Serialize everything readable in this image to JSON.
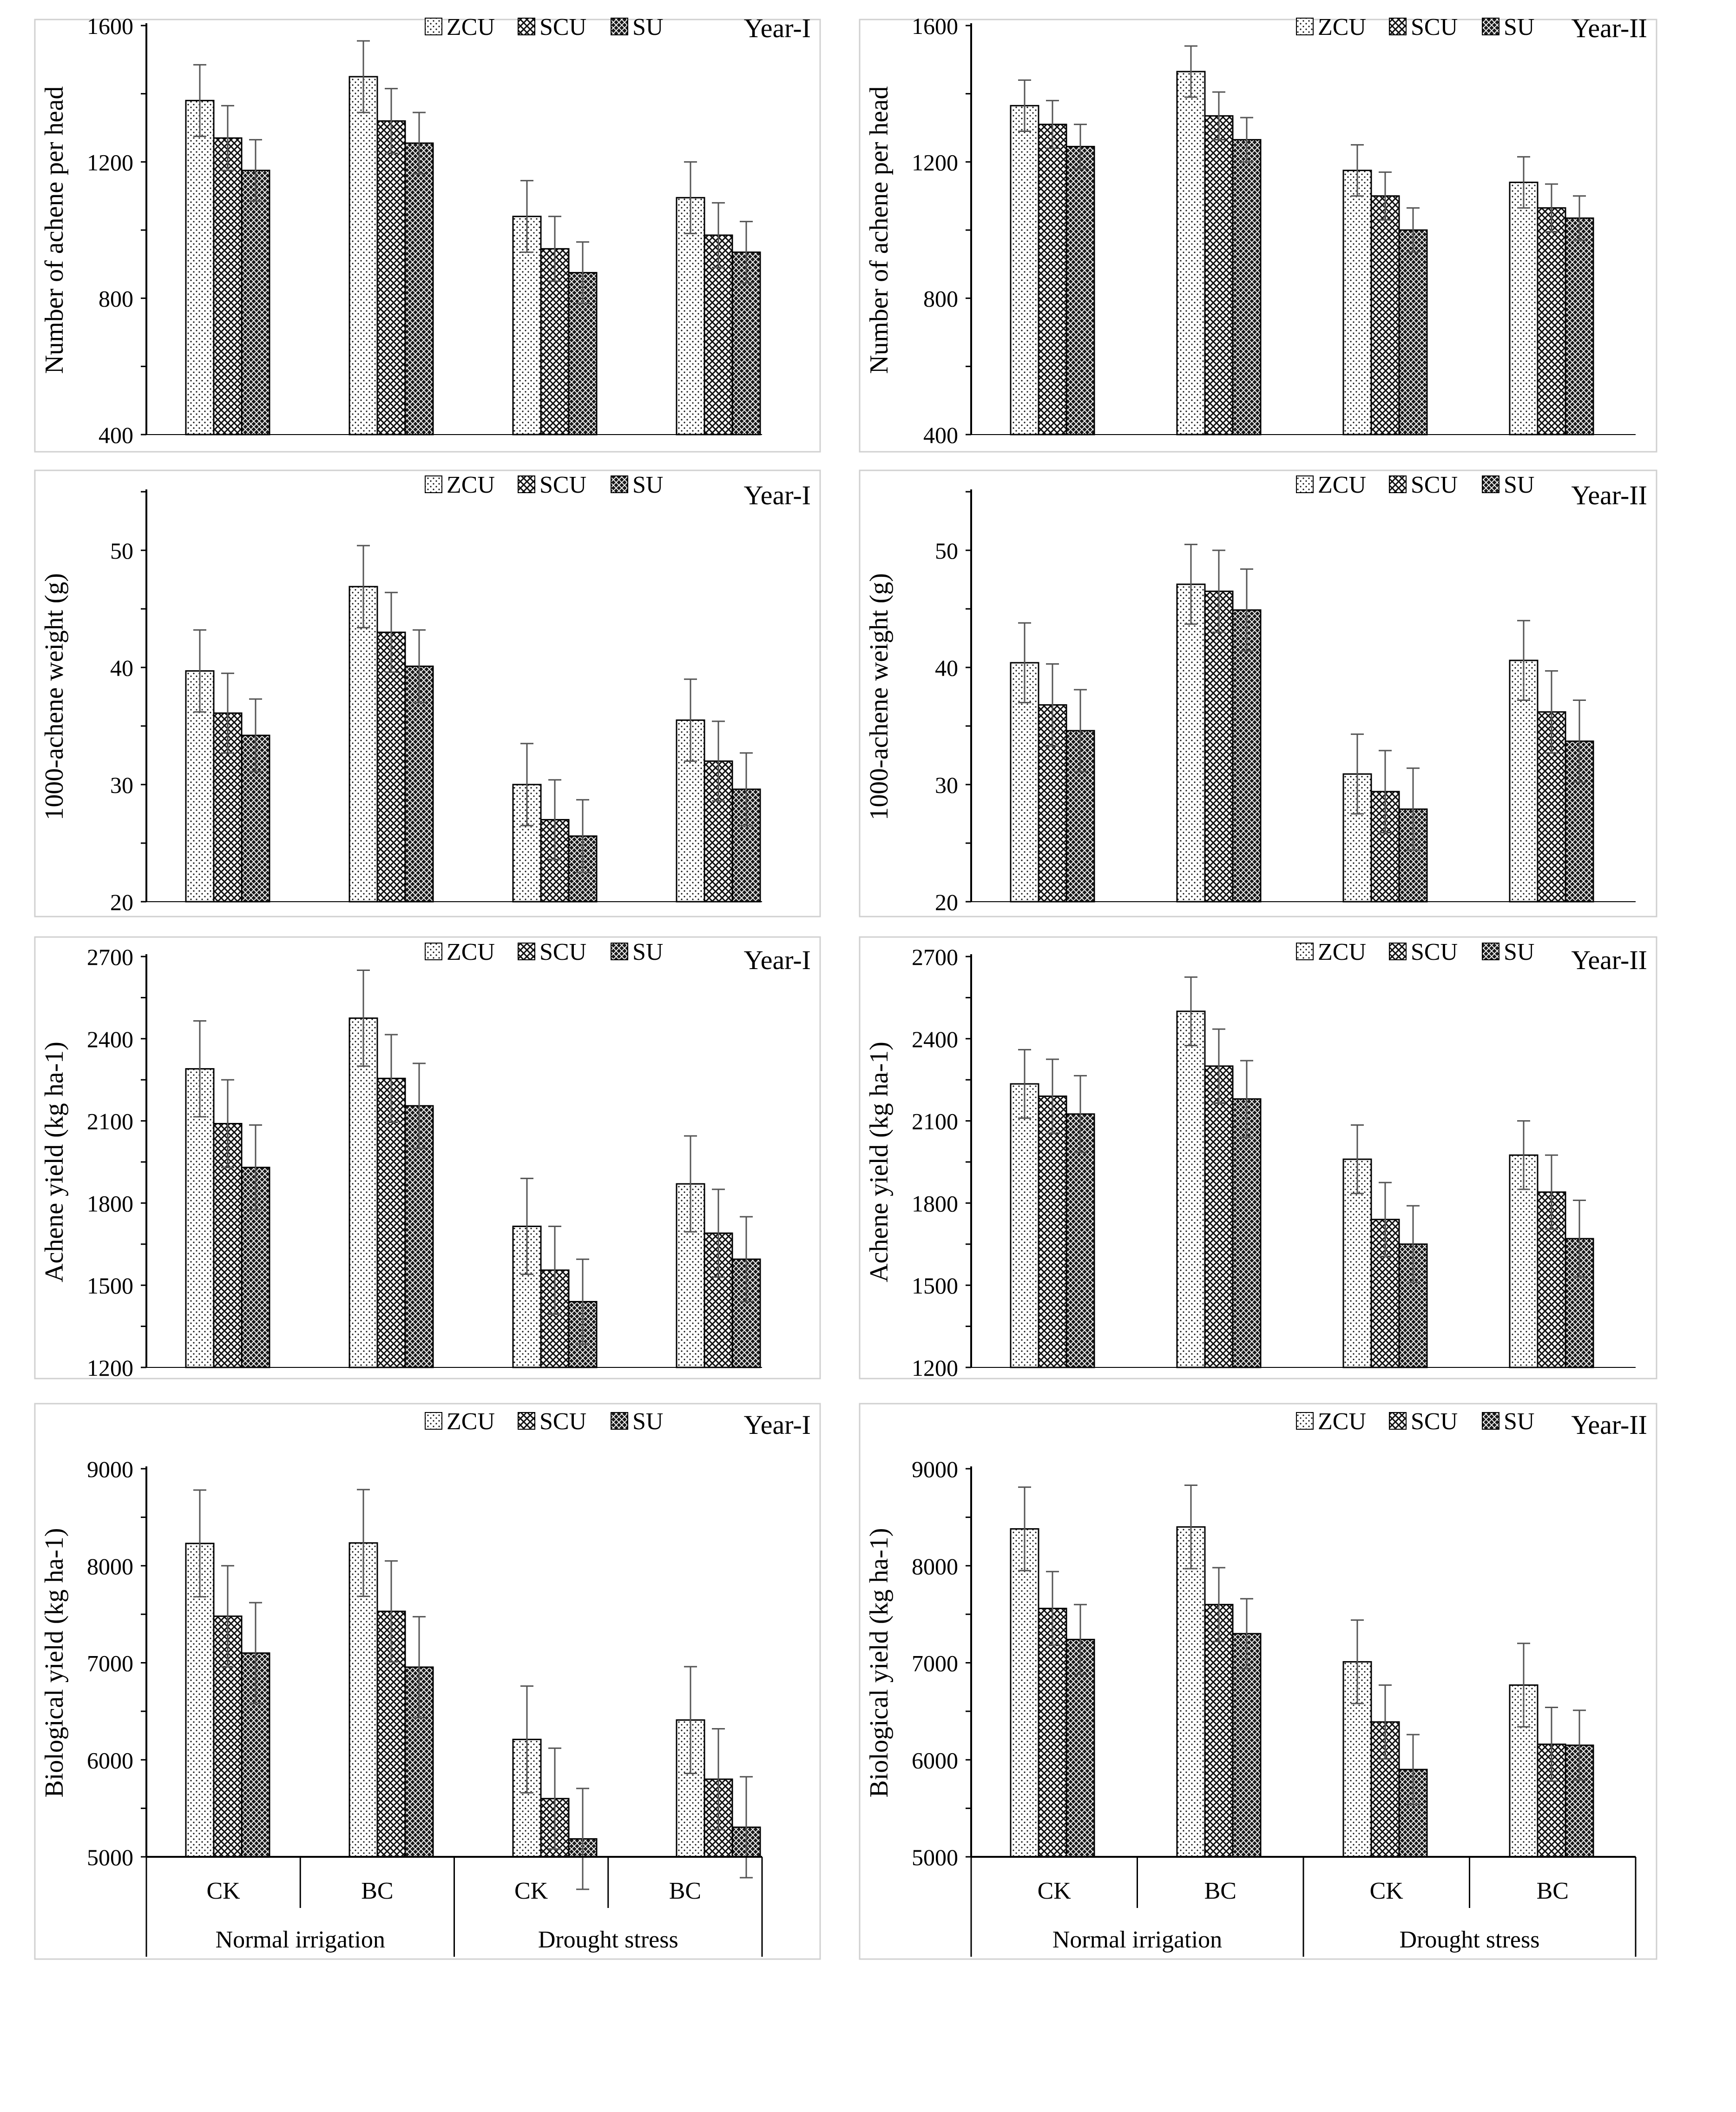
{
  "figure": {
    "categories": [
      "CK",
      "BC",
      "CK",
      "BC"
    ],
    "groups": [
      "Normal irrigation",
      "Drought stress"
    ]
  },
  "chart_data": [
    {
      "type": "bar",
      "title": "Year-I",
      "ylabel": "Number of achene per head",
      "ylim": [
        400,
        1600
      ],
      "yticks": [
        400,
        800,
        1200,
        1600
      ],
      "categories": [
        "CK",
        "BC",
        "CK",
        "BC"
      ],
      "series": [
        {
          "name": "ZCU",
          "values": [
            1380,
            1450,
            1040,
            1095
          ],
          "errors": [
            105,
            105,
            105,
            105
          ]
        },
        {
          "name": "SCU",
          "values": [
            1270,
            1320,
            945,
            985
          ],
          "errors": [
            95,
            95,
            95,
            95
          ]
        },
        {
          "name": "SU",
          "values": [
            1175,
            1255,
            875,
            935
          ],
          "errors": [
            90,
            90,
            90,
            90
          ]
        }
      ]
    },
    {
      "type": "bar",
      "title": "Year-II",
      "ylabel": "Number of achene per head",
      "ylim": [
        400,
        1600
      ],
      "yticks": [
        400,
        800,
        1200,
        1600
      ],
      "categories": [
        "CK",
        "BC",
        "CK",
        "BC"
      ],
      "series": [
        {
          "name": "ZCU",
          "values": [
            1365,
            1465,
            1175,
            1140
          ],
          "errors": [
            75,
            75,
            75,
            75
          ]
        },
        {
          "name": "SCU",
          "values": [
            1310,
            1335,
            1100,
            1065
          ],
          "errors": [
            70,
            70,
            70,
            70
          ]
        },
        {
          "name": "SU",
          "values": [
            1245,
            1265,
            1000,
            1035
          ],
          "errors": [
            65,
            65,
            65,
            65
          ]
        }
      ]
    },
    {
      "type": "bar",
      "title": "Year-I",
      "ylabel": "1000-achene weight (g)",
      "ylim": [
        20,
        55
      ],
      "yticks": [
        20,
        30,
        40,
        50
      ],
      "categories": [
        "CK",
        "BC",
        "CK",
        "BC"
      ],
      "series": [
        {
          "name": "ZCU",
          "values": [
            39.7,
            46.9,
            30.0,
            35.5
          ],
          "errors": [
            3.5,
            3.5,
            3.5,
            3.5
          ]
        },
        {
          "name": "SCU",
          "values": [
            36.1,
            43.0,
            27.0,
            32.0
          ],
          "errors": [
            3.4,
            3.4,
            3.4,
            3.4
          ]
        },
        {
          "name": "SU",
          "values": [
            34.2,
            40.1,
            25.6,
            29.6
          ],
          "errors": [
            3.1,
            3.1,
            3.1,
            3.1
          ]
        }
      ]
    },
    {
      "type": "bar",
      "title": "Year-II",
      "ylabel": "1000-achene weight (g)",
      "ylim": [
        20,
        55
      ],
      "yticks": [
        20,
        30,
        40,
        50
      ],
      "categories": [
        "CK",
        "BC",
        "CK",
        "BC"
      ],
      "series": [
        {
          "name": "ZCU",
          "values": [
            40.4,
            47.1,
            30.9,
            40.6
          ],
          "errors": [
            3.4,
            3.4,
            3.4,
            3.4
          ]
        },
        {
          "name": "SCU",
          "values": [
            36.8,
            46.5,
            29.4,
            36.2
          ],
          "errors": [
            3.5,
            3.5,
            3.5,
            3.5
          ]
        },
        {
          "name": "SU",
          "values": [
            34.6,
            44.9,
            27.9,
            33.7
          ],
          "errors": [
            3.5,
            3.5,
            3.5,
            3.5
          ]
        }
      ]
    },
    {
      "type": "bar",
      "title": "Year-I",
      "ylabel": "Achene yield (kg ha-1)",
      "ylim": [
        1200,
        2700
      ],
      "yticks": [
        1200,
        1500,
        1800,
        2100,
        2400,
        2700
      ],
      "categories": [
        "CK",
        "BC",
        "CK",
        "BC"
      ],
      "series": [
        {
          "name": "ZCU",
          "values": [
            2290,
            2475,
            1715,
            1870
          ],
          "errors": [
            175,
            175,
            175,
            175
          ]
        },
        {
          "name": "SCU",
          "values": [
            2090,
            2255,
            1555,
            1690
          ],
          "errors": [
            160,
            160,
            160,
            160
          ]
        },
        {
          "name": "SU",
          "values": [
            1930,
            2155,
            1440,
            1595
          ],
          "errors": [
            155,
            155,
            155,
            155
          ]
        }
      ]
    },
    {
      "type": "bar",
      "title": "Year-II",
      "ylabel": "Achene yield (kg ha-1)",
      "ylim": [
        1200,
        2700
      ],
      "yticks": [
        1200,
        1500,
        1800,
        2100,
        2400,
        2700
      ],
      "categories": [
        "CK",
        "BC",
        "CK",
        "BC"
      ],
      "series": [
        {
          "name": "ZCU",
          "values": [
            2235,
            2500,
            1960,
            1975
          ],
          "errors": [
            125,
            125,
            125,
            125
          ]
        },
        {
          "name": "SCU",
          "values": [
            2190,
            2300,
            1740,
            1840
          ],
          "errors": [
            135,
            135,
            135,
            135
          ]
        },
        {
          "name": "SU",
          "values": [
            2125,
            2180,
            1650,
            1670
          ],
          "errors": [
            140,
            140,
            140,
            140
          ]
        }
      ]
    },
    {
      "type": "bar",
      "title": "Year-I",
      "ylabel": "Biological yield (kg ha-1)",
      "ylim": [
        5000,
        9000
      ],
      "yticks": [
        5000,
        6000,
        7000,
        8000,
        9000
      ],
      "categories": [
        "CK",
        "BC",
        "CK",
        "BC"
      ],
      "groups": [
        "Normal irrigation",
        "Drought stress"
      ],
      "series": [
        {
          "name": "ZCU",
          "values": [
            8230,
            8235,
            6210,
            6410
          ],
          "errors": [
            550,
            550,
            550,
            550
          ]
        },
        {
          "name": "SCU",
          "values": [
            7480,
            7530,
            5600,
            5800
          ],
          "errors": [
            520,
            520,
            520,
            520
          ]
        },
        {
          "name": "SU",
          "values": [
            7100,
            6955,
            5185,
            5305
          ],
          "errors": [
            520,
            520,
            520,
            520
          ]
        }
      ]
    },
    {
      "type": "bar",
      "title": "Year-II",
      "ylabel": "Biological yield (kg ha-1)",
      "ylim": [
        5000,
        9000
      ],
      "yticks": [
        5000,
        6000,
        7000,
        8000,
        9000
      ],
      "categories": [
        "CK",
        "BC",
        "CK",
        "BC"
      ],
      "groups": [
        "Normal irrigation",
        "Drought stress"
      ],
      "series": [
        {
          "name": "ZCU",
          "values": [
            8380,
            8400,
            7010,
            6770
          ],
          "errors": [
            430,
            430,
            430,
            430
          ]
        },
        {
          "name": "SCU",
          "values": [
            7560,
            7600,
            6390,
            6160
          ],
          "errors": [
            380,
            380,
            380,
            380
          ]
        },
        {
          "name": "SU",
          "values": [
            7240,
            7300,
            5900,
            6150
          ],
          "errors": [
            360,
            360,
            360,
            360
          ]
        }
      ]
    }
  ]
}
